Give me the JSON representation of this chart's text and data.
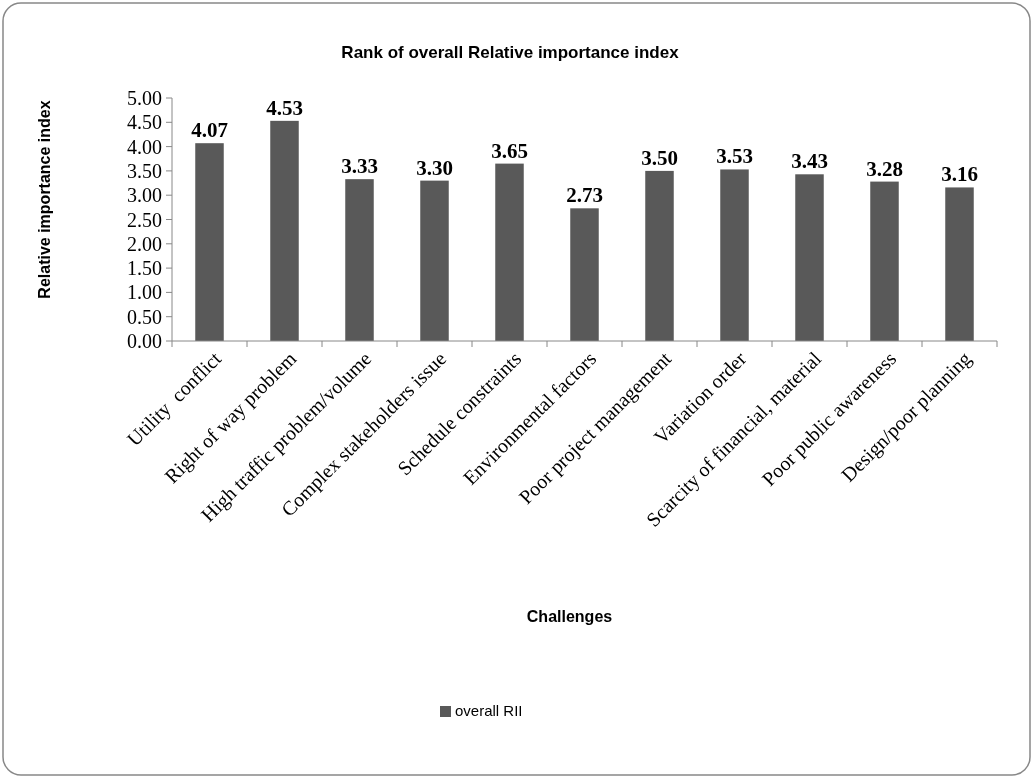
{
  "chart_data": {
    "type": "bar",
    "title": "Rank of overall Relative importance index",
    "xlabel": "Challenges",
    "ylabel": "Relative importance index",
    "categories": [
      "Utility  conflict",
      "Right of way problem",
      "High traffic problem/volume",
      "Complex stakeholders issue",
      "Schedule constraints",
      "Environmental factors",
      "Poor project management",
      "Variation order",
      "Scarcity of financial, material",
      "Poor public awareness",
      "Design/poor planning"
    ],
    "series": [
      {
        "name": "overall RII",
        "color": "#595959",
        "values": [
          4.07,
          4.53,
          3.33,
          3.3,
          3.65,
          2.73,
          3.5,
          3.53,
          3.43,
          3.28,
          3.16
        ],
        "value_labels": [
          "4.07",
          "4.53",
          "3.33",
          "3.30",
          "3.65",
          "2.73",
          "3.50",
          "3.53",
          "3.43",
          "3.28",
          "3.16"
        ]
      }
    ],
    "ylim": [
      0,
      5
    ],
    "yticks": [
      {
        "value": 0,
        "label": "0.00"
      },
      {
        "value": 0.5,
        "label": "0.50"
      },
      {
        "value": 1,
        "label": "1.00"
      },
      {
        "value": 1.5,
        "label": "1.50"
      },
      {
        "value": 2,
        "label": "2.00"
      },
      {
        "value": 2.5,
        "label": "2.50"
      },
      {
        "value": 3,
        "label": "3.00"
      },
      {
        "value": 3.5,
        "label": "3.50"
      },
      {
        "value": 4,
        "label": "4.00"
      },
      {
        "value": 4.5,
        "label": "4.50"
      },
      {
        "value": 5,
        "label": "5.00"
      }
    ],
    "legend": "bottom"
  }
}
